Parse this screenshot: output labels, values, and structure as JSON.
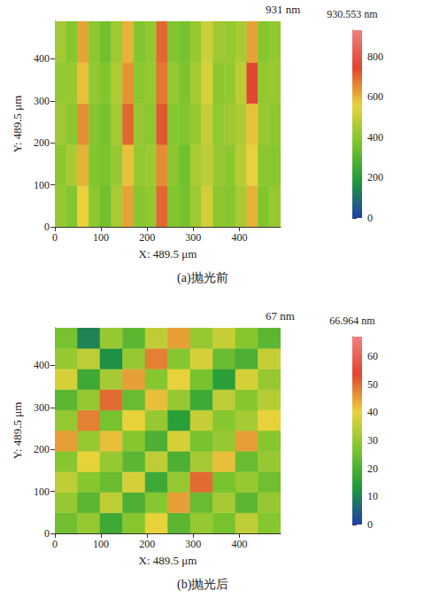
{
  "chart_data": [
    {
      "type": "heatmap",
      "title": "(a)抛光前",
      "annotation": "931 nm",
      "x_label": "X: 489.5 μm",
      "y_label": "Y: 489.5 μm",
      "xlim": [
        0,
        489.5
      ],
      "ylim": [
        0,
        489.5
      ],
      "xticks": [
        0,
        100,
        200,
        300,
        400
      ],
      "yticks": [
        0,
        100,
        200,
        300,
        400
      ],
      "grid": false,
      "x_edges": [
        0,
        24.475,
        48.95,
        73.425,
        97.9,
        122.375,
        146.85,
        171.325,
        195.8,
        220.275,
        244.75,
        269.225,
        293.7,
        318.175,
        342.65,
        367.125,
        391.6,
        416.075,
        440.55,
        465.025,
        489.5
      ],
      "y_edges": [
        0,
        97.9,
        195.8,
        293.7,
        391.6,
        489.5
      ],
      "cells": [
        [
          420,
          380,
          560,
          400,
          350,
          450,
          620,
          390,
          410,
          700,
          380,
          360,
          430,
          520,
          400,
          390,
          450,
          600,
          380,
          420
        ],
        [
          400,
          450,
          600,
          380,
          370,
          420,
          580,
          410,
          430,
          650,
          400,
          350,
          450,
          480,
          420,
          400,
          470,
          560,
          400,
          390
        ],
        [
          430,
          400,
          650,
          390,
          360,
          440,
          700,
          420,
          400,
          720,
          390,
          380,
          420,
          500,
          410,
          430,
          460,
          580,
          420,
          400
        ],
        [
          410,
          420,
          580,
          410,
          380,
          460,
          640,
          400,
          420,
          680,
          410,
          370,
          440,
          530,
          400,
          410,
          480,
          750,
          410,
          420
        ],
        [
          440,
          390,
          620,
          400,
          350,
          430,
          600,
          380,
          410,
          700,
          380,
          360,
          420,
          510,
          430,
          420,
          450,
          620,
          390,
          410
        ]
      ],
      "colorbar": {
        "label": "930.553 nm",
        "range": [
          0,
          930.553
        ],
        "ticks": [
          0,
          200,
          400,
          600,
          800
        ],
        "colormap": [
          "#1f3fa8",
          "#1f9a3a",
          "#7cc52e",
          "#e8d23a",
          "#e0452e",
          "#f08080"
        ]
      }
    },
    {
      "type": "heatmap",
      "title": "(b)抛光后",
      "annotation": "67 nm",
      "x_label": "X: 489.5 μm",
      "y_label": "Y: 489.5 μm",
      "xlim": [
        0,
        489.5
      ],
      "ylim": [
        0,
        489.5
      ],
      "xticks": [
        0,
        100,
        200,
        300,
        400
      ],
      "yticks": [
        0,
        100,
        200,
        300,
        400
      ],
      "grid": false,
      "x_edges": [
        0,
        48.95,
        97.9,
        146.85,
        195.8,
        244.75,
        293.7,
        342.65,
        391.6,
        440.55,
        489.5
      ],
      "y_edges": [
        0,
        48.95,
        97.9,
        146.85,
        195.8,
        244.75,
        293.7,
        342.65,
        391.6,
        440.55,
        489.5
      ],
      "cells": [
        [
          25,
          30,
          18,
          28,
          40,
          22,
          30,
          26,
          35,
          28
        ],
        [
          30,
          22,
          35,
          20,
          28,
          45,
          24,
          32,
          22,
          30
        ],
        [
          35,
          28,
          24,
          38,
          18,
          30,
          50,
          26,
          30,
          25
        ],
        [
          28,
          40,
          30,
          22,
          35,
          20,
          32,
          42,
          24,
          30
        ],
        [
          45,
          30,
          42,
          28,
          20,
          38,
          26,
          30,
          45,
          28
        ],
        [
          30,
          48,
          26,
          40,
          30,
          15,
          36,
          28,
          32,
          40
        ],
        [
          22,
          30,
          50,
          24,
          42,
          30,
          18,
          35,
          28,
          34
        ],
        [
          38,
          18,
          32,
          45,
          28,
          40,
          26,
          15,
          38,
          30
        ],
        [
          30,
          35,
          12,
          30,
          48,
          28,
          38,
          24,
          20,
          36
        ],
        [
          26,
          10,
          30,
          22,
          35,
          45,
          30,
          36,
          28,
          22
        ]
      ],
      "colorbar": {
        "label": "66.964 nm",
        "range": [
          0,
          66.964
        ],
        "ticks": [
          0,
          10,
          20,
          30,
          40,
          50,
          60
        ],
        "colormap": [
          "#1f3fa8",
          "#1f9a3a",
          "#7cc52e",
          "#e8d23a",
          "#e0452e",
          "#f08080"
        ]
      }
    }
  ]
}
